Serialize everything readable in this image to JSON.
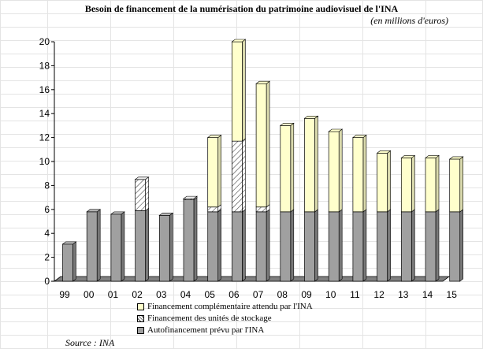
{
  "header": {
    "title": "Besoin de financement de la numérisation du patrimoine audiovisuel de l'INA",
    "unit": "(en millions d'euros)"
  },
  "footer": {
    "source": "Source : INA"
  },
  "colors": {
    "complement": "#ffffcc",
    "stockage": "#ffffff",
    "autofinancement": "#a0a0a0"
  },
  "chart_data": {
    "type": "bar",
    "stacked": true,
    "categories": [
      "99",
      "00",
      "01",
      "02",
      "03",
      "04",
      "05",
      "06",
      "07",
      "08",
      "09",
      "10",
      "11",
      "12",
      "13",
      "14",
      "15"
    ],
    "series": [
      {
        "name": "Autofinancement prévu par l'INA",
        "values": [
          3.1,
          5.8,
          5.6,
          5.9,
          5.5,
          6.8,
          5.8,
          5.8,
          5.8,
          5.8,
          5.8,
          5.8,
          5.8,
          5.8,
          5.8,
          5.8,
          5.8
        ]
      },
      {
        "name": "Financement des unités de stockage",
        "values": [
          0,
          0,
          0,
          2.6,
          0,
          0.1,
          0.4,
          5.9,
          0.4,
          0,
          0,
          0,
          0,
          0,
          0,
          0,
          0
        ]
      },
      {
        "name": "Financement complémentaire attendu par l'INA",
        "values": [
          0,
          0,
          0,
          0,
          0,
          0,
          5.8,
          8.3,
          10.3,
          7.2,
          7.8,
          6.7,
          6.2,
          4.9,
          4.5,
          4.5,
          4.4
        ]
      }
    ],
    "legend_order": [
      2,
      1,
      0
    ],
    "ylim": [
      0,
      20
    ],
    "yticks": [
      0,
      2,
      4,
      6,
      8,
      10,
      12,
      14,
      16,
      18,
      20
    ],
    "grid": false,
    "legend_position": "bottom-left"
  }
}
